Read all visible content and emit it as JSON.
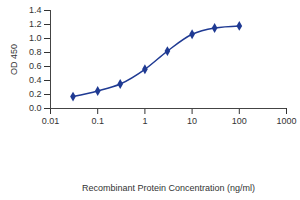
{
  "chart_data": {
    "type": "line",
    "x_label": "Recombinant Protein Concentration (ng/ml)",
    "y_label": "OD 450",
    "x": [
      0.03,
      0.1,
      0.3,
      1,
      3,
      10,
      30,
      100
    ],
    "values": [
      0.17,
      0.25,
      0.35,
      0.56,
      0.82,
      1.06,
      1.15,
      1.18
    ],
    "color": "#1f3a93",
    "marker": "diamond",
    "line_style": "solid",
    "log": "x",
    "xlim": [
      0.01,
      1000
    ],
    "xticks": [
      0.01,
      0.1,
      1,
      10,
      100,
      1000
    ],
    "ylim": [
      0,
      1.4
    ],
    "yticks": [
      {
        "value": 0,
        "label": "0.0"
      },
      0.2,
      0.4,
      0.6,
      0.8,
      {
        "value": 1,
        "label": "1.0"
      },
      1.2,
      1.4
    ],
    "grid": false
  }
}
